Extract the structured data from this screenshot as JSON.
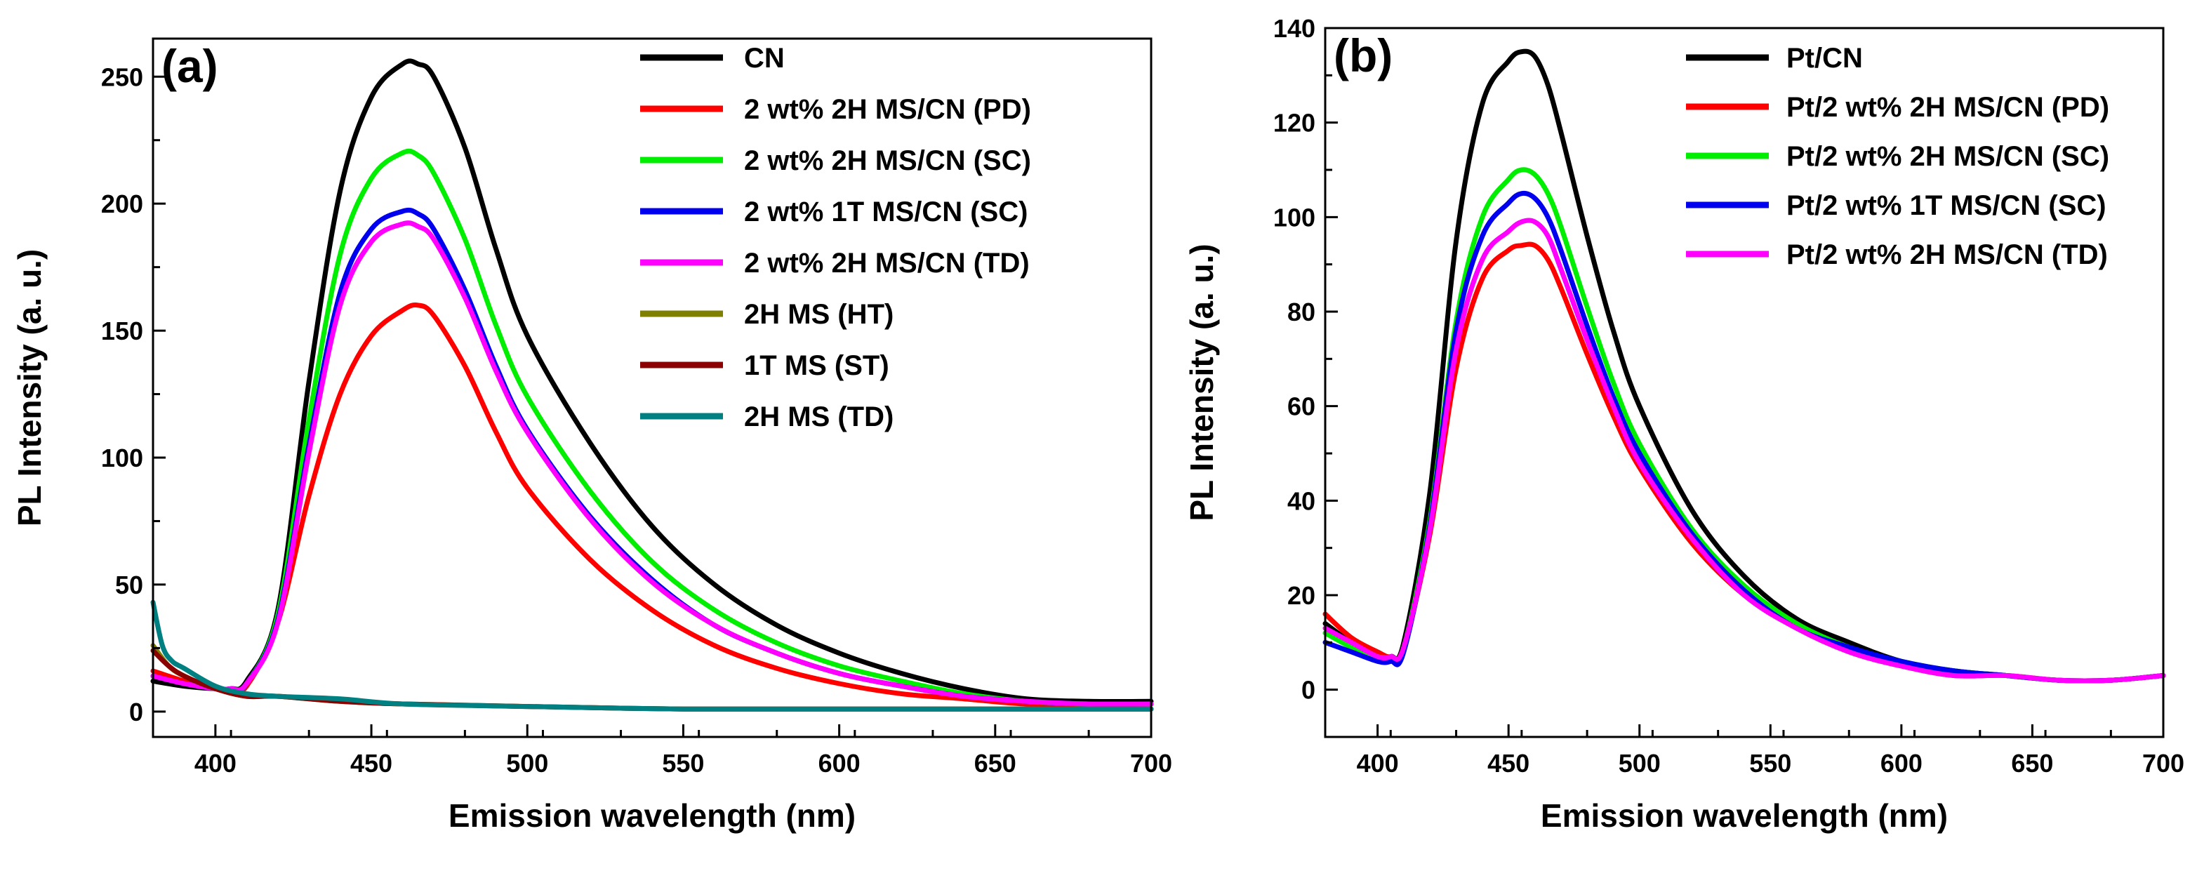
{
  "chart_data": [
    {
      "type": "line",
      "panel_label": "(a)",
      "xlabel": "Emission wavelength (nm)",
      "ylabel": "PL Intensity (a. u.)",
      "xlim": [
        380,
        700
      ],
      "ylim": [
        -10,
        265
      ],
      "xticks": [
        400,
        450,
        500,
        550,
        600,
        650,
        700
      ],
      "yticks": [
        0,
        50,
        100,
        150,
        200,
        250
      ],
      "legend_position": "top-right",
      "series": [
        {
          "name": "CN",
          "color": "#000000",
          "x": [
            380,
            390,
            400,
            405,
            410,
            420,
            430,
            440,
            450,
            460,
            465,
            470,
            480,
            490,
            500,
            520,
            540,
            560,
            580,
            600,
            620,
            640,
            660,
            680,
            700
          ],
          "y": [
            12,
            10,
            9,
            9,
            12,
            40,
            130,
            205,
            242,
            255,
            255,
            250,
            222,
            182,
            148,
            106,
            73,
            50,
            34,
            23,
            15,
            9,
            5,
            4,
            4
          ]
        },
        {
          "name": "2 wt% 2H MS/CN (PD)",
          "color": "#ff0000",
          "x": [
            380,
            390,
            400,
            405,
            410,
            420,
            430,
            440,
            450,
            460,
            465,
            470,
            480,
            490,
            500,
            520,
            540,
            560,
            580,
            600,
            620,
            640,
            660,
            680,
            700
          ],
          "y": [
            16,
            12,
            9,
            9,
            10,
            35,
            85,
            125,
            148,
            158,
            160,
            156,
            136,
            110,
            88,
            60,
            40,
            26,
            17,
            11,
            7,
            5,
            3,
            3,
            3
          ]
        },
        {
          "name": "2 wt% 2H MS/CN (SC)",
          "color": "#00ee00",
          "x": [
            380,
            390,
            400,
            405,
            410,
            420,
            430,
            440,
            450,
            460,
            465,
            470,
            480,
            490,
            500,
            520,
            540,
            560,
            580,
            600,
            620,
            640,
            660,
            680,
            700
          ],
          "y": [
            14,
            11,
            9,
            9,
            11,
            38,
            115,
            180,
            210,
            220,
            219,
            212,
            186,
            152,
            124,
            87,
            59,
            40,
            27,
            18,
            12,
            7,
            4,
            3,
            3
          ]
        },
        {
          "name": "2 wt% 1T MS/CN (SC)",
          "color": "#0000ee",
          "x": [
            380,
            390,
            400,
            405,
            410,
            420,
            430,
            440,
            450,
            460,
            465,
            470,
            480,
            490,
            500,
            520,
            540,
            560,
            580,
            600,
            620,
            640,
            660,
            680,
            700
          ],
          "y": [
            14,
            11,
            9,
            9,
            11,
            36,
            105,
            165,
            190,
            197,
            196,
            190,
            166,
            136,
            111,
            77,
            52,
            34,
            23,
            15,
            10,
            6,
            4,
            3,
            3
          ]
        },
        {
          "name": "2 wt% 2H MS/CN (TD)",
          "color": "#ff00ff",
          "x": [
            380,
            390,
            400,
            405,
            410,
            420,
            430,
            440,
            450,
            460,
            465,
            470,
            480,
            490,
            500,
            520,
            540,
            560,
            580,
            600,
            620,
            640,
            660,
            680,
            700
          ],
          "y": [
            14,
            11,
            9,
            9,
            11,
            35,
            102,
            160,
            185,
            192,
            191,
            186,
            163,
            134,
            110,
            76,
            51,
            34,
            23,
            15,
            10,
            6,
            4,
            3,
            3
          ]
        },
        {
          "name": "2H MS (HT)",
          "color": "#808000",
          "x": [
            380,
            385,
            390,
            400,
            410,
            420,
            440,
            460,
            500,
            550,
            600,
            650,
            700
          ],
          "y": [
            26,
            18,
            14,
            9,
            6,
            6,
            4,
            3,
            2,
            1,
            1,
            1,
            1
          ]
        },
        {
          "name": "1T MS (ST)",
          "color": "#8b0000",
          "x": [
            380,
            385,
            390,
            400,
            410,
            420,
            440,
            460,
            500,
            550,
            600,
            650,
            700
          ],
          "y": [
            24,
            18,
            14,
            9,
            6,
            6,
            4,
            3,
            2,
            1,
            1,
            1,
            1
          ]
        },
        {
          "name": "2H MS (TD)",
          "color": "#008080",
          "x": [
            380,
            383,
            386,
            390,
            400,
            410,
            420,
            440,
            460,
            500,
            550,
            600,
            650,
            700
          ],
          "y": [
            43,
            26,
            20,
            17,
            10,
            7,
            6,
            5,
            3,
            2,
            1,
            1,
            1,
            1
          ]
        }
      ]
    },
    {
      "type": "line",
      "panel_label": "(b)",
      "xlabel": "Emission wavelength (nm)",
      "ylabel": "PL Intensity (a. u.)",
      "xlim": [
        380,
        700
      ],
      "ylim": [
        -10,
        140
      ],
      "xticks": [
        400,
        450,
        500,
        550,
        600,
        650,
        700
      ],
      "yticks": [
        0,
        20,
        40,
        60,
        80,
        100,
        120,
        140
      ],
      "legend_position": "top-right",
      "series": [
        {
          "name": "Pt/CN",
          "color": "#000000",
          "x": [
            380,
            390,
            400,
            405,
            410,
            420,
            430,
            440,
            450,
            455,
            460,
            465,
            470,
            480,
            490,
            500,
            520,
            540,
            560,
            580,
            600,
            620,
            640,
            660,
            680,
            700
          ],
          "y": [
            14,
            10,
            7,
            7,
            10,
            42,
            95,
            124,
            133,
            135,
            134,
            128,
            118,
            96,
            76,
            60,
            38,
            24,
            15,
            10,
            6,
            4,
            3,
            2,
            2,
            3
          ]
        },
        {
          "name": "Pt/2 wt% 2H MS/CN (PD)",
          "color": "#ff0000",
          "x": [
            380,
            390,
            400,
            405,
            410,
            420,
            430,
            440,
            450,
            455,
            460,
            465,
            470,
            480,
            490,
            500,
            520,
            540,
            560,
            580,
            600,
            620,
            640,
            660,
            680,
            700
          ],
          "y": [
            16,
            11,
            8,
            7,
            9,
            33,
            68,
            87,
            93,
            94,
            94,
            91,
            85,
            71,
            58,
            47,
            31,
            20,
            13,
            8,
            5,
            3,
            3,
            2,
            2,
            3
          ]
        },
        {
          "name": "Pt/2 wt% 2H MS/CN (SC)",
          "color": "#00ee00",
          "x": [
            380,
            390,
            400,
            405,
            410,
            420,
            430,
            440,
            450,
            455,
            460,
            465,
            470,
            480,
            490,
            500,
            520,
            540,
            560,
            580,
            600,
            620,
            640,
            660,
            680,
            700
          ],
          "y": [
            12,
            9,
            7,
            7,
            9,
            36,
            78,
            100,
            108,
            110,
            109,
            105,
            98,
            81,
            65,
            52,
            34,
            22,
            14,
            9,
            6,
            4,
            3,
            2,
            2,
            3
          ]
        },
        {
          "name": "Pt/2 wt% 1T MS/CN (SC)",
          "color": "#0000ee",
          "x": [
            380,
            390,
            400,
            405,
            410,
            420,
            430,
            440,
            450,
            455,
            460,
            465,
            470,
            480,
            490,
            500,
            520,
            540,
            560,
            580,
            600,
            620,
            640,
            660,
            680,
            700
          ],
          "y": [
            10,
            8,
            6,
            6,
            8,
            35,
            76,
            96,
            103,
            105,
            104,
            100,
            93,
            77,
            62,
            50,
            33,
            21,
            13,
            9,
            6,
            4,
            3,
            2,
            2,
            3
          ]
        },
        {
          "name": "Pt/2 wt% 2H MS/CN (TD)",
          "color": "#ff00ff",
          "x": [
            380,
            390,
            400,
            405,
            410,
            420,
            430,
            440,
            450,
            455,
            460,
            465,
            470,
            480,
            490,
            500,
            520,
            540,
            560,
            580,
            600,
            620,
            640,
            660,
            680,
            700
          ],
          "y": [
            13,
            10,
            7,
            7,
            9,
            34,
            72,
            91,
            97,
            99,
            99,
            96,
            89,
            74,
            60,
            48,
            32,
            20,
            13,
            8,
            5,
            3,
            3,
            2,
            2,
            3
          ]
        }
      ]
    }
  ]
}
